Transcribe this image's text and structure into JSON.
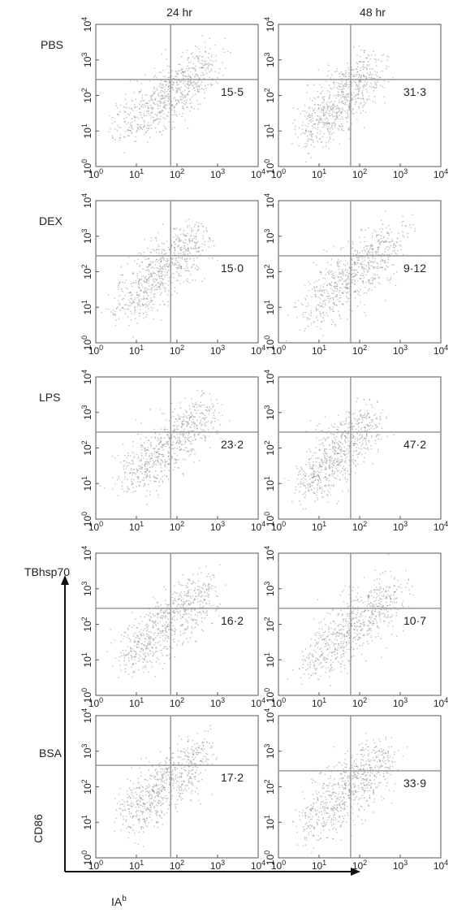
{
  "figure": {
    "columns": [
      "24 hr",
      "48 hr"
    ],
    "rows": [
      "PBS",
      "DEX",
      "LPS",
      "TBhsp70",
      "BSA"
    ],
    "y_axis_label": "CD86",
    "x_axis_label": "IA",
    "x_axis_label_sup": "b",
    "tick_labels": [
      "10",
      "10",
      "10",
      "10",
      "10"
    ],
    "tick_exponents": [
      "0",
      "1",
      "2",
      "3",
      "4"
    ],
    "colors": {
      "frame": "#555555",
      "gate": "#999999",
      "dots": "#888888",
      "arrow": "#111111"
    }
  },
  "chart_data": [
    {
      "type": "scatter",
      "row": "PBS",
      "column": "24 hr",
      "quadrant_value": "15·5",
      "xscale": "log",
      "yscale": "log",
      "xlim": [
        1,
        10000
      ],
      "ylim": [
        1,
        10000
      ],
      "x_gate": 70,
      "y_gate": 280,
      "cloud": {
        "x_from": 2,
        "y_from": 3,
        "x_to": 1500,
        "y_to": 2500
      }
    },
    {
      "type": "scatter",
      "row": "PBS",
      "column": "48 hr",
      "quadrant_value": "31·3",
      "xscale": "log",
      "yscale": "log",
      "xlim": [
        1,
        10000
      ],
      "ylim": [
        1,
        10000
      ],
      "x_gate": 60,
      "y_gate": 280,
      "cloud": {
        "x_from": 2,
        "y_from": 2,
        "x_to": 500,
        "y_to": 2000
      }
    },
    {
      "type": "scatter",
      "row": "DEX",
      "column": "24 hr",
      "quadrant_value": "15·0",
      "xscale": "log",
      "yscale": "log",
      "xlim": [
        1,
        10000
      ],
      "ylim": [
        1,
        10000
      ],
      "x_gate": 70,
      "y_gate": 280,
      "cloud": {
        "x_from": 2,
        "y_from": 3,
        "x_to": 800,
        "y_to": 3000
      }
    },
    {
      "type": "scatter",
      "row": "DEX",
      "column": "48 hr",
      "quadrant_value": "9·12",
      "xscale": "log",
      "yscale": "log",
      "xlim": [
        1,
        10000
      ],
      "ylim": [
        1,
        10000
      ],
      "x_gate": 60,
      "y_gate": 280,
      "cloud": {
        "x_from": 2,
        "y_from": 2,
        "x_to": 2000,
        "y_to": 3000
      }
    },
    {
      "type": "scatter",
      "row": "LPS",
      "column": "24 hr",
      "quadrant_value": "23·2",
      "xscale": "log",
      "yscale": "log",
      "xlim": [
        1,
        10000
      ],
      "ylim": [
        1,
        10000
      ],
      "x_gate": 70,
      "y_gate": 280,
      "cloud": {
        "x_from": 2,
        "y_from": 3,
        "x_to": 1500,
        "y_to": 3000
      }
    },
    {
      "type": "scatter",
      "row": "LPS",
      "column": "48 hr",
      "quadrant_value": "47·2",
      "xscale": "log",
      "yscale": "log",
      "xlim": [
        1,
        10000
      ],
      "ylim": [
        1,
        10000
      ],
      "x_gate": 60,
      "y_gate": 280,
      "cloud": {
        "x_from": 2,
        "y_from": 2,
        "x_to": 400,
        "y_to": 2000
      }
    },
    {
      "type": "scatter",
      "row": "TBhsp70",
      "column": "24 hr",
      "quadrant_value": "16·2",
      "xscale": "log",
      "yscale": "log",
      "xlim": [
        1,
        10000
      ],
      "ylim": [
        1,
        10000
      ],
      "x_gate": 70,
      "y_gate": 280,
      "cloud": {
        "x_from": 2,
        "y_from": 3,
        "x_to": 1500,
        "y_to": 3000
      }
    },
    {
      "type": "scatter",
      "row": "TBhsp70",
      "column": "48 hr",
      "quadrant_value": "10·7",
      "xscale": "log",
      "yscale": "log",
      "xlim": [
        1,
        10000
      ],
      "ylim": [
        1,
        10000
      ],
      "x_gate": 60,
      "y_gate": 280,
      "cloud": {
        "x_from": 2,
        "y_from": 2,
        "x_to": 2000,
        "y_to": 3000
      }
    },
    {
      "type": "scatter",
      "row": "BSA",
      "column": "24 hr",
      "quadrant_value": "17·2",
      "xscale": "log",
      "yscale": "log",
      "xlim": [
        1,
        10000
      ],
      "ylim": [
        1,
        10000
      ],
      "x_gate": 70,
      "y_gate": 400,
      "cloud": {
        "x_from": 2,
        "y_from": 3,
        "x_to": 1000,
        "y_to": 3000
      }
    },
    {
      "type": "scatter",
      "row": "BSA",
      "column": "48 hr",
      "quadrant_value": "33·9",
      "xscale": "log",
      "yscale": "log",
      "xlim": [
        1,
        10000
      ],
      "ylim": [
        1,
        10000
      ],
      "x_gate": 60,
      "y_gate": 280,
      "cloud": {
        "x_from": 2,
        "y_from": 2,
        "x_to": 1000,
        "y_to": 2500
      }
    }
  ]
}
